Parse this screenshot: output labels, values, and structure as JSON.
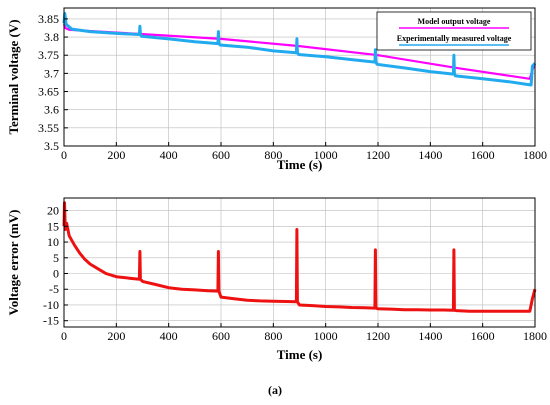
{
  "caption": "(a)",
  "colors": {
    "model": "#ff00ff",
    "measured": "#22aaee",
    "error": "#ee1111",
    "grid": "#bbbbbb"
  },
  "chart_data": [
    {
      "type": "line",
      "title": "",
      "xlabel": "Time (s)",
      "ylabel": "Terminal voltage (V)",
      "xlim": [
        0,
        1800
      ],
      "ylim": [
        3.5,
        3.88
      ],
      "xticks": [
        0,
        200,
        400,
        600,
        800,
        1000,
        1200,
        1400,
        1600,
        1800
      ],
      "yticks": [
        3.5,
        3.55,
        3.6,
        3.65,
        3.7,
        3.75,
        3.8,
        3.85
      ],
      "yticklabels": [
        "3.5",
        "3.55",
        "3.6",
        "3.65",
        "3.7",
        "3.75",
        "3.8",
        "3.85"
      ],
      "grid": true,
      "legend_position": "top-right",
      "series": [
        {
          "name": "Model output voltage",
          "color": "#ff00ff",
          "x": [
            0,
            5,
            20,
            300,
            600,
            900,
            1200,
            1500,
            1780,
            1790,
            1800
          ],
          "y": [
            3.835,
            3.825,
            3.82,
            3.808,
            3.795,
            3.775,
            3.75,
            3.715,
            3.685,
            3.71,
            3.725
          ]
        },
        {
          "name": "Experimentally measured voltage",
          "color": "#22aaee",
          "x": [
            0,
            3,
            8,
            30,
            100,
            200,
            288,
            290,
            292,
            296,
            400,
            500,
            588,
            590,
            592,
            596,
            700,
            800,
            888,
            890,
            892,
            896,
            1000,
            1100,
            1188,
            1190,
            1192,
            1196,
            1300,
            1400,
            1488,
            1490,
            1492,
            1496,
            1600,
            1700,
            1785,
            1790,
            1800
          ],
          "y": [
            3.838,
            3.865,
            3.835,
            3.822,
            3.815,
            3.81,
            3.807,
            3.83,
            3.808,
            3.802,
            3.795,
            3.787,
            3.782,
            3.815,
            3.783,
            3.778,
            3.772,
            3.762,
            3.757,
            3.795,
            3.758,
            3.752,
            3.746,
            3.738,
            3.731,
            3.765,
            3.732,
            3.725,
            3.715,
            3.705,
            3.698,
            3.75,
            3.7,
            3.693,
            3.685,
            3.677,
            3.668,
            3.72,
            3.728
          ]
        }
      ]
    },
    {
      "type": "line",
      "title": "",
      "xlabel": "Time (s)",
      "ylabel": "Voltage error (mV)",
      "xlim": [
        0,
        1800
      ],
      "ylim": [
        -17,
        24
      ],
      "xticks": [
        0,
        200,
        400,
        600,
        800,
        1000,
        1200,
        1400,
        1600,
        1800
      ],
      "yticks": [
        -15,
        -10,
        -5,
        0,
        5,
        10,
        15,
        20
      ],
      "yticklabels": [
        "-15",
        "-10",
        "-5",
        "0",
        "5",
        "10",
        "15",
        "20"
      ],
      "grid": true,
      "series": [
        {
          "name": "",
          "color": "#ee1111",
          "x": [
            0,
            2,
            5,
            10,
            20,
            40,
            60,
            80,
            100,
            130,
            160,
            200,
            250,
            288,
            290,
            292,
            300,
            350,
            400,
            450,
            500,
            550,
            588,
            590,
            592,
            600,
            650,
            700,
            750,
            800,
            850,
            888,
            890,
            892,
            900,
            950,
            1000,
            1050,
            1100,
            1150,
            1188,
            1190,
            1192,
            1200,
            1250,
            1300,
            1350,
            1400,
            1450,
            1488,
            1490,
            1492,
            1500,
            1550,
            1600,
            1650,
            1700,
            1750,
            1780,
            1790,
            1800
          ],
          "y": [
            15,
            22.5,
            14,
            16,
            12,
            9,
            6.5,
            4.5,
            3,
            1.5,
            0,
            -1,
            -1.5,
            -1.8,
            7,
            -1.8,
            -2.5,
            -3.5,
            -4.5,
            -5,
            -5.2,
            -5.5,
            -5.6,
            7,
            -5.6,
            -7.5,
            -8,
            -8.5,
            -8.7,
            -8.8,
            -8.9,
            -9,
            14,
            -9,
            -10,
            -10.2,
            -10.5,
            -10.6,
            -10.8,
            -10.9,
            -11,
            7.5,
            -11,
            -11.2,
            -11.3,
            -11.5,
            -11.5,
            -11.6,
            -11.6,
            -11.7,
            7.5,
            -11.7,
            -11.8,
            -12,
            -12,
            -12,
            -12,
            -12,
            -12,
            -8,
            -5
          ]
        }
      ]
    }
  ]
}
